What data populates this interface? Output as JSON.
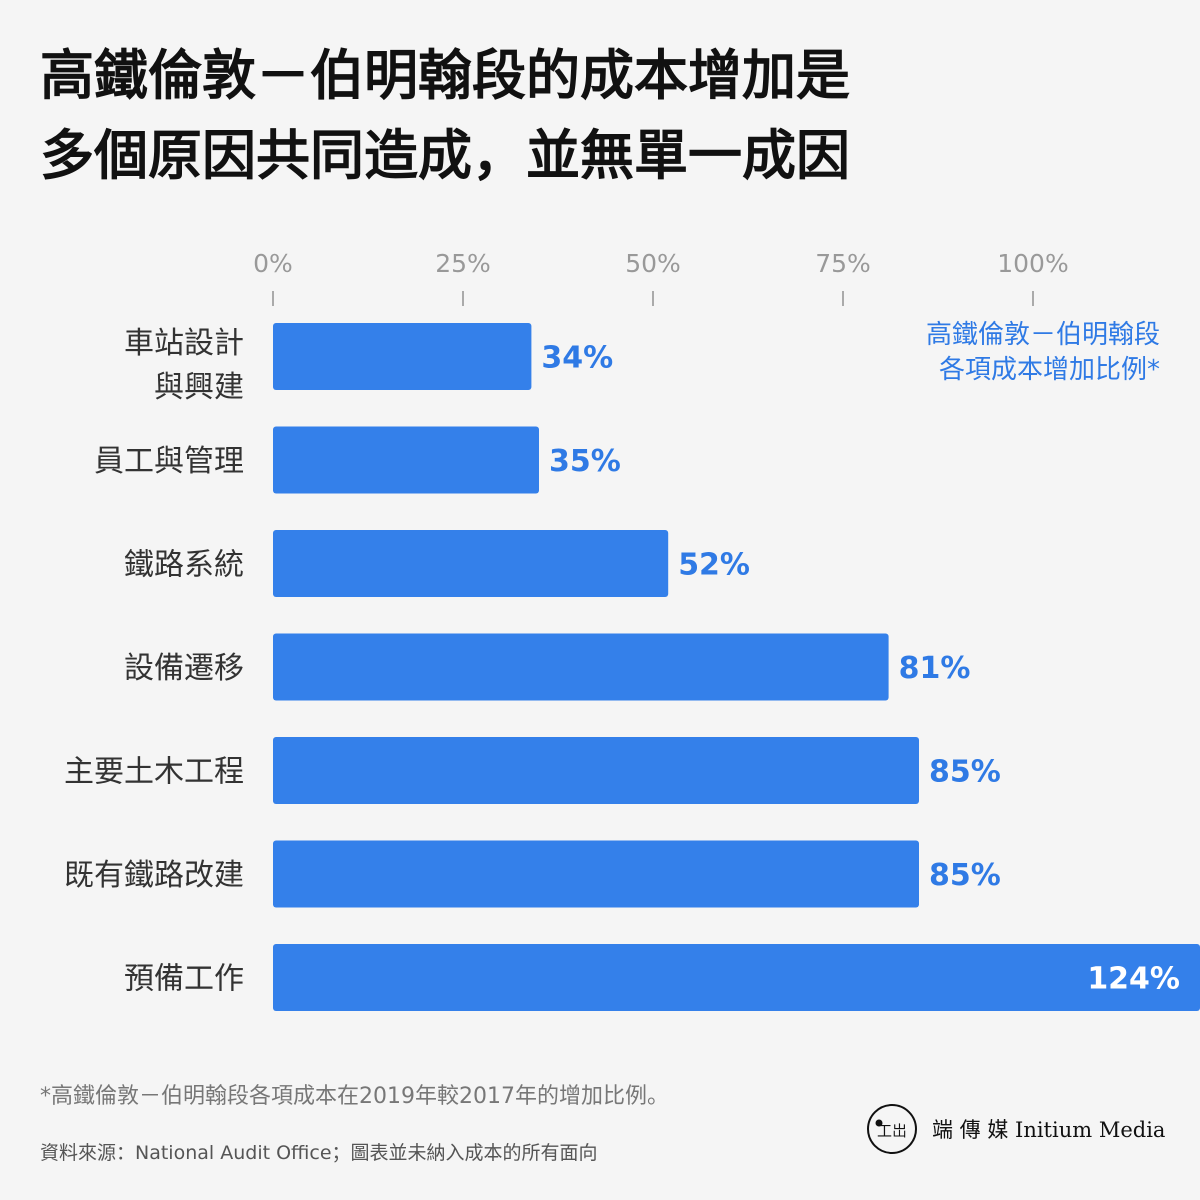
{
  "title_lines": [
    "高鐵倫敦－伯明翰段的成本增加是",
    "多個原因共同造成，並無單一成因"
  ],
  "legend_note_lines": [
    "高鐵倫敦－伯明翰段",
    "各項成本增加比例*"
  ],
  "footnote": "*高鐵倫敦－伯明翰段各項成本在2019年較2017年的增加比例。",
  "source": "資料來源：National Audit Office；圖表並未納入成本的所有面向",
  "brand": {
    "text": "端 傳 媒  Initium Media",
    "logo_icon": "initium-logo-icon"
  },
  "colors": {
    "bar": "#3480ea",
    "accent_text": "#2f7ae5",
    "background": "#f5f5f5"
  },
  "chart_data": {
    "type": "bar",
    "orientation": "horizontal",
    "categories": [
      [
        "車站設計",
        "與興建"
      ],
      [
        "員工與管理"
      ],
      [
        "鐵路系統"
      ],
      [
        "設備遷移"
      ],
      [
        "主要土木工程"
      ],
      [
        "既有鐵路改建"
      ],
      [
        "預備工作"
      ]
    ],
    "values": [
      34,
      35,
      52,
      81,
      85,
      85,
      124
    ],
    "value_labels": [
      "34%",
      "35%",
      "52%",
      "81%",
      "85%",
      "85%",
      "124%"
    ],
    "ticks": [
      0,
      25,
      50,
      75,
      100
    ],
    "tick_labels": [
      "0%",
      "25%",
      "50%",
      "75%",
      "100%"
    ],
    "xlim": [
      0,
      100
    ],
    "ylabel": "",
    "xlabel": "",
    "grid": false,
    "axis_position": "top"
  }
}
